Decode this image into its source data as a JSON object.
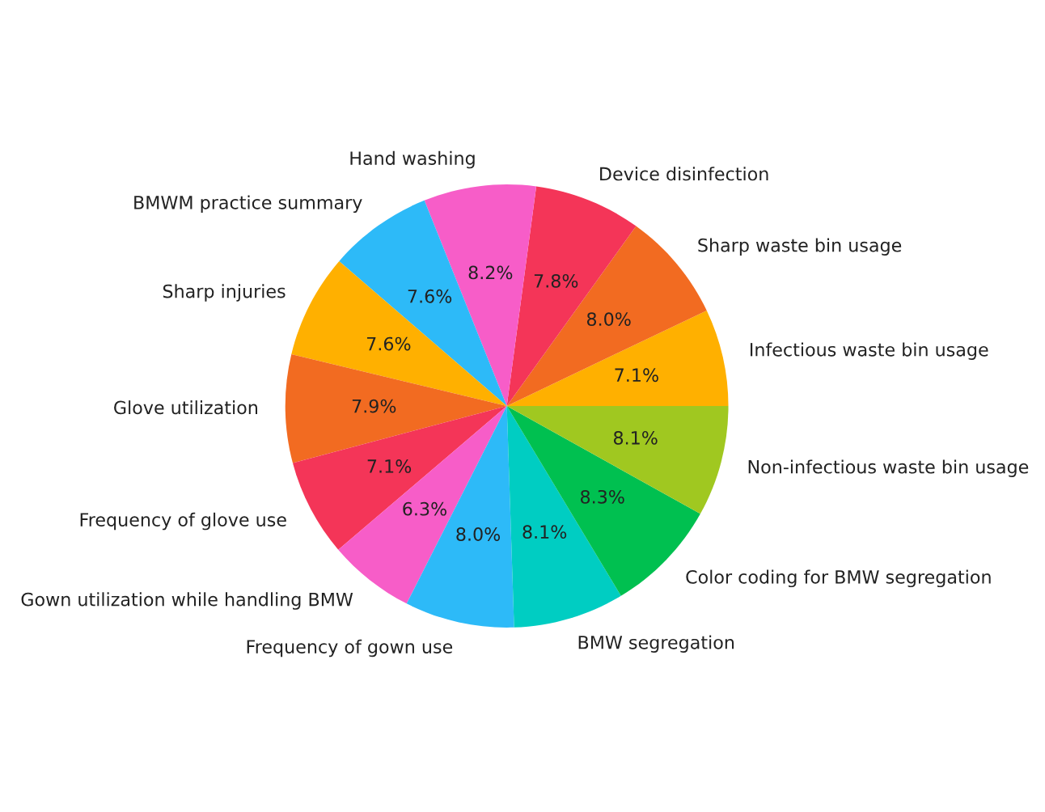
{
  "chart_data": {
    "type": "pie",
    "categories": [
      "Infectious waste bin usage",
      "Sharp waste bin usage",
      "Device disinfection",
      "Hand washing",
      "BMWM practice summary",
      "Sharp injuries",
      "Glove utilization",
      "Frequency of glove use",
      "Gown utilization while handling BMW",
      "Frequency of gown use",
      "BMW segregation",
      "Color coding for BMW segregation",
      "Non-infectious waste bin usage"
    ],
    "values": [
      7.1,
      8.0,
      7.8,
      8.2,
      7.6,
      7.6,
      7.9,
      7.1,
      6.3,
      8.0,
      8.1,
      8.3,
      8.1
    ],
    "value_labels": [
      "7.1%",
      "8.0%",
      "7.8%",
      "8.2%",
      "7.6%",
      "7.6%",
      "7.9%",
      "7.1%",
      "6.3%",
      "8.0%",
      "8.1%",
      "8.3%",
      "8.1%"
    ],
    "colors": [
      "#ffb000",
      "#f26b21",
      "#f43558",
      "#f75dc8",
      "#2dbaf8",
      "#ffb000",
      "#f26b21",
      "#f43558",
      "#f75dc8",
      "#2dbaf8",
      "#00cdc2",
      "#00c050",
      "#a0c820"
    ]
  }
}
